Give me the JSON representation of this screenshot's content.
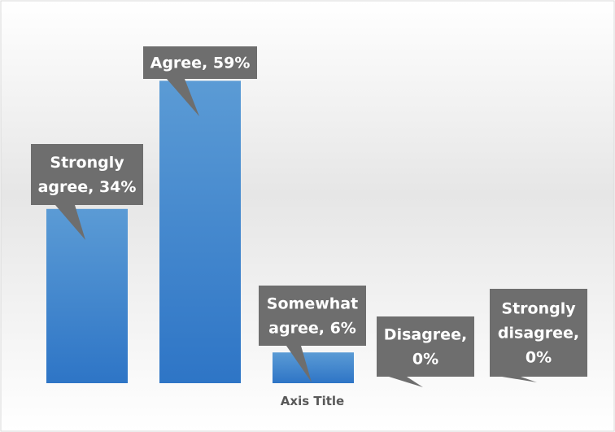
{
  "chart_data": {
    "type": "bar",
    "categories": [
      "Strongly agree",
      "Agree",
      "Somewhat agree",
      "Disagree",
      "Strongly disagree"
    ],
    "values": [
      34,
      59,
      6,
      0,
      0
    ],
    "unit": "%",
    "data_labels": [
      [
        "Strongly",
        "agree, 34%"
      ],
      [
        "Agree, 59%"
      ],
      [
        "Somewhat",
        "agree, 6%"
      ],
      [
        "Disagree,",
        "0%"
      ],
      [
        "Strongly",
        "disagree,",
        "0%"
      ]
    ],
    "title": "",
    "xlabel": "Axis Title",
    "ylabel": "",
    "ylim": [
      0,
      70
    ],
    "grid": false,
    "legend": "none"
  },
  "colors": {
    "bar_top": "#5b9bd5",
    "bar_bottom": "#2e75c6",
    "callout": "#6e6e6e",
    "callout_text": "#ffffff",
    "axis_title": "#595959",
    "background_mid": "#e6e6e6",
    "border": "#d9d9d9"
  }
}
